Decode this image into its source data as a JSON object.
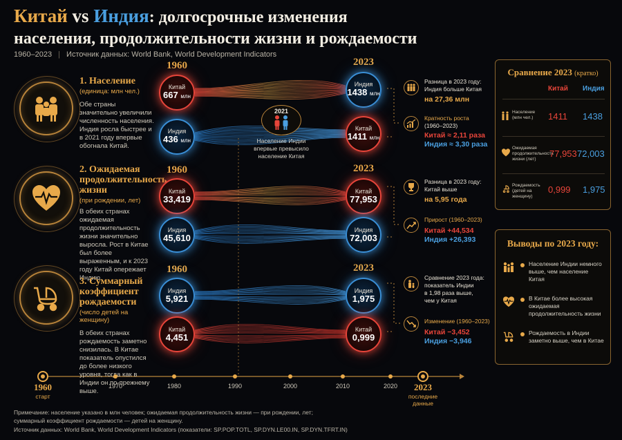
{
  "header": {
    "title_china": "Китай",
    "title_vs": "vs",
    "title_india": "Индия",
    "title_rest": ": долгосрочные изменения",
    "title_line2": "населения, продолжительности жизни и рождаемости",
    "period": "1960–2023",
    "separator": "|",
    "source": "Источник данных: World Bank, World Development Indicators"
  },
  "labels": {
    "year_start": "1960",
    "year_end": "2023",
    "china": "Китай",
    "india": "Индия",
    "unit_mln": "млн"
  },
  "sections": [
    {
      "title": "1. Население",
      "unit": "(единица: млн чел.)",
      "text": "Обе страны значительно увеличили численность населения. Индия росла быстрее и в 2021 году впервые обогнала Китай.",
      "china_1960": "667",
      "india_1960": "436",
      "india_2023": "1438",
      "china_2023": "1411",
      "info1_a": "Разница в 2023 году:",
      "info1_b": "Индия больше Китая",
      "info1_c": "на 27,36 млн",
      "info2_a": "Кратность роста",
      "info2_b": "(1960–2023)",
      "info2_c": "Китай ≈ 2,11 раза",
      "info2_d": "Индия ≈ 3,30 раза"
    },
    {
      "title": "2. Ожидаемая продолжительность жизни",
      "unit": "(при рождении, лет)",
      "text": "В обеих странах ожидаемая продолжительность жизни значительно выросла. Рост в Китае был более выраженным, и к 2023 году Китай опережает Индию.",
      "china_1960": "33,419",
      "india_1960": "45,610",
      "china_2023": "77,953",
      "india_2023": "72,003",
      "info1_a": "Разница в 2023 году:",
      "info1_b": "Китай выше",
      "info1_c": "на 5,95 года",
      "info2_a": "Прирост (1960–2023)",
      "info2_c": "Китай +44,534",
      "info2_d": "Индия +26,393"
    },
    {
      "title": "3. Суммарный коэффициент рождаемости",
      "unit": "(число детей на женщину)",
      "text": "В обеих странах рождаемость заметно снизилась. В Китае показатель опустился до более низкого уровня, тогда как в Индии он по-прежнему выше.",
      "india_1960": "5,921",
      "china_1960": "4,451",
      "india_2023": "1,975",
      "china_2023": "0,999",
      "info1_a": "Сравнение 2023 года:",
      "info1_b": "показатель Индии",
      "info1_c": "в 1,98 раза выше,",
      "info1_d": "чем у Китая",
      "info2_a": "Изменение (1960–2023)",
      "info2_c": "Китай −3,452",
      "info2_d": "Индия −3,946"
    }
  ],
  "callout_2021": {
    "year": "2021",
    "text": "Население Индии впервые превысило население Китая"
  },
  "compare_panel": {
    "title": "Сравнение 2023",
    "title_small": "(кратко)",
    "col_china": "Китай",
    "col_india": "Индия",
    "rows": [
      {
        "label": "Население",
        "unit": "(млн чел.)",
        "china": "1411",
        "india": "1438"
      },
      {
        "label": "Ожидаемая продолжительность",
        "unit": "жизни (лет)",
        "china": "77,953",
        "india": "72,003"
      },
      {
        "label": "Рождаемость",
        "unit": "(детей на женщину)",
        "china": "0,999",
        "india": "1,975"
      }
    ]
  },
  "conclusions": {
    "title": "Выводы по 2023 году:",
    "items": [
      "Население Индии немного выше, чем население Китая",
      "В Китае более высокая ожидаемая продолжительность жизни",
      "Рождаемость в Индии заметно выше, чем в Китае"
    ]
  },
  "timeline": {
    "start_year": "1960",
    "start_label": "старт",
    "years": [
      "1970",
      "1980",
      "1990",
      "2000",
      "2010",
      "2020"
    ],
    "end_year": "2023",
    "end_label_1": "последние",
    "end_label_2": "данные"
  },
  "footer": {
    "note_1": "Примечание: население указано в млн человек; ожидаемая продолжительность жизни — при рождении, лет;",
    "note_2": "суммарный коэффициент рождаемости — детей на женщину.",
    "source": "Источник данных: World Bank, World Development Indicators (показатели: SP.POP.TOTL, SP.DYN.LE00.IN, SP.DYN.TFRT.IN)"
  },
  "colors": {
    "gold": "#e8a94a",
    "china_red": "#e8453a",
    "india_blue": "#4a9fe0",
    "background": "#07080c"
  },
  "icons": [
    "people-group-icon",
    "heart-pulse-icon",
    "baby-stroller-icon",
    "trophy-icon",
    "trend-up-icon",
    "trend-down-icon",
    "mother-child-icon"
  ]
}
